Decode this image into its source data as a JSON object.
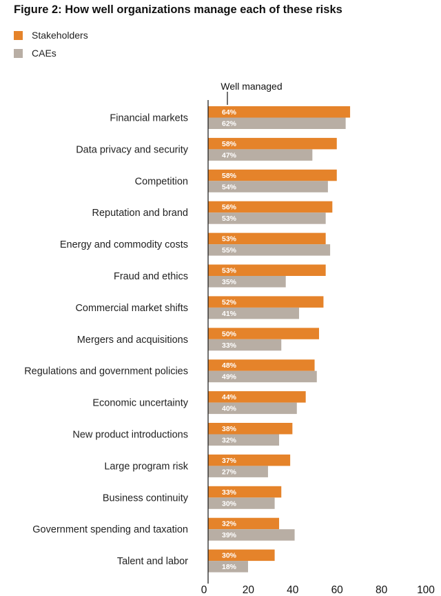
{
  "chart_data": {
    "type": "bar",
    "orientation": "horizontal",
    "title": "Figure 2: How well organizations manage each of these risks",
    "annotation": "Well managed",
    "categories": [
      "Financial markets",
      "Data privacy and security",
      "Competition",
      "Reputation and brand",
      "Energy and commodity costs",
      "Fraud and ethics",
      "Commercial market shifts",
      "Mergers and acquisitions",
      "Regulations and government policies",
      "Economic uncertainty",
      "New product introductions",
      "Large program risk",
      "Business continuity",
      "Government spending and taxation",
      "Talent and labor"
    ],
    "series": [
      {
        "name": "Stakeholders",
        "color": "#e5832a",
        "values": [
          64,
          58,
          58,
          56,
          53,
          53,
          52,
          50,
          48,
          44,
          38,
          37,
          33,
          32,
          30
        ]
      },
      {
        "name": "CAEs",
        "color": "#b8aea4",
        "values": [
          62,
          47,
          54,
          53,
          55,
          35,
          41,
          33,
          49,
          40,
          32,
          27,
          30,
          39,
          18
        ]
      }
    ],
    "xlim": [
      0,
      100
    ],
    "xticks": [
      0,
      20,
      40,
      60,
      80,
      100
    ],
    "value_suffix": "%",
    "grid": false,
    "legend": "top-left"
  }
}
